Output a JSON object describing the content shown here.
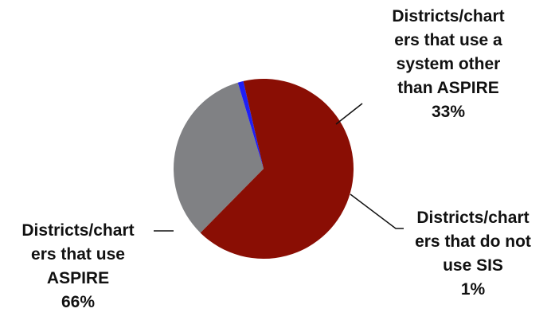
{
  "chart_data": {
    "type": "pie",
    "slices": [
      {
        "label_lines": [
          "Districts/chart",
          "ers that use a",
          "system other",
          "than ASPIRE"
        ],
        "value": 33,
        "value_label": "33%",
        "color": "#808184"
      },
      {
        "label_lines": [
          "Districts/chart",
          "ers that do not",
          "use SIS"
        ],
        "value": 1,
        "value_label": "1%",
        "color": "#1f1ff5"
      },
      {
        "label_lines": [
          "Districts/chart",
          "ers that use",
          "ASPIRE"
        ],
        "value": 66,
        "value_label": "66%",
        "color": "#8a0e04"
      }
    ]
  }
}
